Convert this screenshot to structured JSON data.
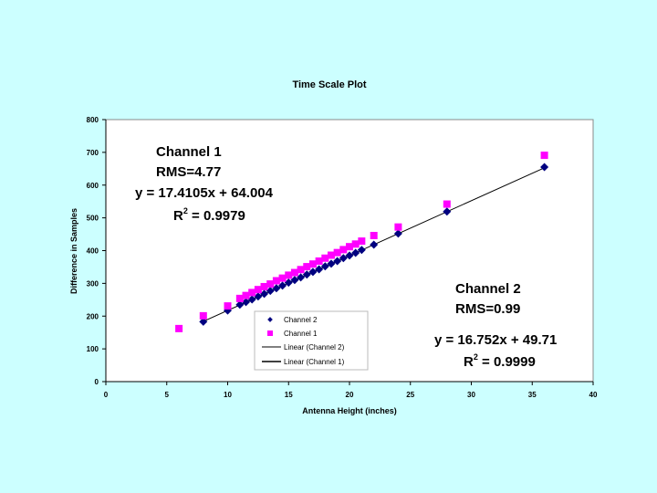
{
  "chart_data": {
    "type": "scatter",
    "title": "Time Scale Plot",
    "xlabel": "Antenna Height (inches)",
    "ylabel": "Difference in Samples",
    "xlim": [
      0,
      40
    ],
    "ylim": [
      0,
      800
    ],
    "xticks": [
      0,
      5,
      10,
      15,
      20,
      25,
      30,
      35,
      40
    ],
    "yticks": [
      0,
      100,
      200,
      300,
      400,
      500,
      600,
      700,
      800
    ],
    "grid": false,
    "legend_position": "bottom-center",
    "colors": {
      "page_bg": "#ccffff",
      "plot_bg": "#ffffff",
      "channel1_marker": "#ff00ff",
      "channel2_marker": "#000080",
      "fit_line": "#000000"
    },
    "series": [
      {
        "name": "Channel 2",
        "marker": "diamond",
        "x": [
          8,
          10,
          11,
          11.5,
          12,
          12.5,
          13,
          13.5,
          14,
          14.5,
          15,
          15.5,
          16,
          16.5,
          17,
          17.5,
          18,
          18.5,
          19,
          19.5,
          20,
          20.5,
          21,
          22,
          24,
          28,
          36
        ],
        "y": [
          183,
          217,
          235,
          243,
          251,
          260,
          268,
          277,
          285,
          293,
          302,
          310,
          318,
          327,
          335,
          343,
          352,
          360,
          368,
          377,
          385,
          393,
          402,
          418,
          452,
          519,
          655
        ]
      },
      {
        "name": "Channel 1",
        "marker": "square",
        "x": [
          6,
          8,
          10,
          11,
          11.5,
          12,
          12.5,
          13,
          13.5,
          14,
          14.5,
          15,
          15.5,
          16,
          16.5,
          17,
          17.5,
          18,
          18.5,
          19,
          19.5,
          20,
          20.5,
          21,
          22,
          24,
          28,
          36
        ],
        "y": [
          162,
          201,
          231,
          254,
          263,
          272,
          281,
          290,
          298,
          308,
          316,
          325,
          333,
          342,
          351,
          359,
          368,
          377,
          386,
          394,
          403,
          412,
          420,
          429,
          446,
          472,
          542,
          691
        ]
      }
    ],
    "fits": [
      {
        "name": "Linear (Channel 2)",
        "slope": 16.752,
        "intercept": 49.71,
        "x_range": [
          8,
          36
        ]
      },
      {
        "name": "Linear (Channel 1)",
        "slope": 17.4105,
        "intercept": 64.004,
        "x_range": [
          11,
          21
        ]
      }
    ],
    "annotations": {
      "channel1": {
        "name": "Channel 1",
        "rms": "RMS=4.77",
        "equation": "y = 17.4105x + 64.004",
        "r2_prefix": "R",
        "r2_sup": "2",
        "r2_value": " = 0.9979"
      },
      "channel2": {
        "name": "Channel 2",
        "rms": "RMS=0.99",
        "equation": "y = 16.752x + 49.71",
        "r2_prefix": "R",
        "r2_sup": "2",
        "r2_value": " = 0.9999"
      }
    },
    "legend": [
      "Channel 2",
      "Channel 1",
      "Linear (Channel 2)",
      "Linear (Channel 1)"
    ]
  }
}
